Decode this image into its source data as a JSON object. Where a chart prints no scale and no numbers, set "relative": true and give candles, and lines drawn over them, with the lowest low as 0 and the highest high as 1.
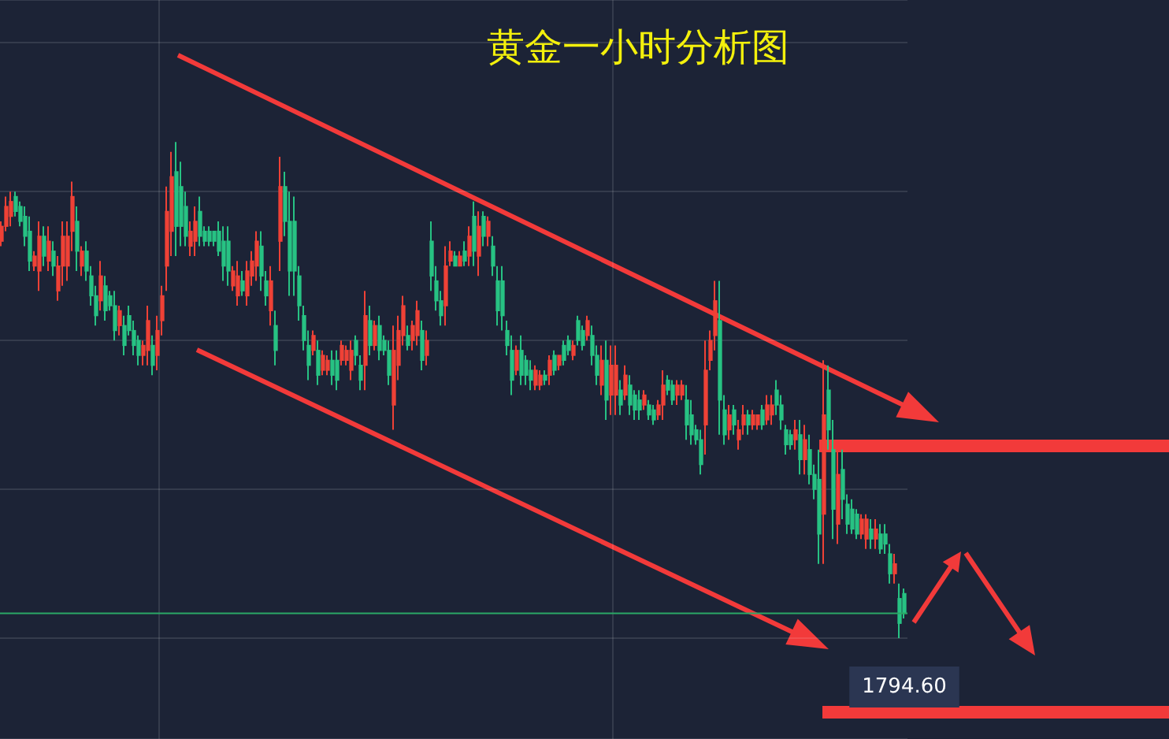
{
  "chart_data": {
    "type": "candlestick",
    "title": "黄金一小时分析图",
    "relative": true,
    "grid": true,
    "tick_labels": false,
    "categories": [
      null,
      null,
      null,
      null,
      null,
      null,
      null,
      null,
      null,
      null,
      null,
      null,
      null,
      null,
      null,
      null,
      null,
      null,
      null,
      null,
      null,
      null,
      null,
      null,
      null,
      null,
      null,
      null,
      null,
      null,
      null,
      null,
      null,
      null,
      null,
      null,
      null,
      null,
      null,
      null,
      null,
      null,
      null,
      null,
      null,
      null,
      null,
      null,
      null,
      null,
      null,
      null,
      null,
      null,
      null,
      null,
      null,
      null,
      null,
      null,
      null,
      null,
      null,
      null,
      null,
      null,
      null,
      null,
      null,
      null,
      null,
      null,
      null,
      null,
      null,
      null,
      null,
      null,
      null,
      null,
      null,
      null,
      null,
      null,
      null,
      null,
      null,
      null,
      null,
      null,
      null,
      null,
      null,
      null,
      null,
      null,
      null,
      null,
      null,
      null,
      null,
      null,
      null,
      null,
      null,
      null,
      null,
      null,
      null,
      null,
      null,
      null,
      null,
      null,
      null,
      null,
      null,
      null,
      null,
      null,
      null,
      null,
      null,
      null,
      null,
      null,
      null,
      null,
      null,
      null,
      null,
      null,
      null,
      null,
      null,
      null,
      null,
      null,
      null,
      null,
      null,
      null,
      null,
      null,
      null,
      null,
      null,
      null,
      null,
      null,
      null,
      null,
      null,
      null,
      null,
      null,
      null,
      null,
      null,
      null,
      null,
      null,
      null,
      null,
      null,
      null,
      null,
      null,
      null,
      null,
      null,
      null,
      null,
      null,
      null,
      null,
      null,
      null,
      null,
      null,
      null,
      null,
      null,
      null,
      null,
      null,
      null,
      null,
      null,
      null,
      null,
      null
    ],
    "ohlc": [
      [
        0.8,
        0.84,
        0.79,
        0.83
      ],
      [
        0.83,
        0.89,
        0.82,
        0.87
      ],
      [
        0.85,
        0.9,
        0.83,
        0.88
      ],
      [
        0.89,
        0.9,
        0.85,
        0.86
      ],
      [
        0.87,
        0.88,
        0.83,
        0.84
      ],
      [
        0.85,
        0.87,
        0.79,
        0.81
      ],
      [
        0.82,
        0.85,
        0.74,
        0.76
      ],
      [
        0.75,
        0.78,
        0.74,
        0.77
      ],
      [
        0.74,
        0.84,
        0.7,
        0.81
      ],
      [
        0.81,
        0.83,
        0.75,
        0.77
      ],
      [
        0.76,
        0.83,
        0.74,
        0.8
      ],
      [
        0.78,
        0.8,
        0.73,
        0.75
      ],
      [
        0.7,
        0.77,
        0.68,
        0.75
      ],
      [
        0.75,
        0.84,
        0.71,
        0.81
      ],
      [
        0.75,
        0.84,
        0.72,
        0.81
      ],
      [
        0.82,
        0.92,
        0.78,
        0.89
      ],
      [
        0.84,
        0.87,
        0.74,
        0.78
      ],
      [
        0.75,
        0.79,
        0.73,
        0.78
      ],
      [
        0.78,
        0.8,
        0.72,
        0.74
      ],
      [
        0.73,
        0.75,
        0.67,
        0.69
      ],
      [
        0.69,
        0.71,
        0.63,
        0.65
      ],
      [
        0.68,
        0.76,
        0.66,
        0.73
      ],
      [
        0.71,
        0.73,
        0.64,
        0.66
      ],
      [
        0.69,
        0.7,
        0.66,
        0.67
      ],
      [
        0.67,
        0.7,
        0.6,
        0.62
      ],
      [
        0.63,
        0.67,
        0.61,
        0.66
      ],
      [
        0.63,
        0.65,
        0.57,
        0.59
      ],
      [
        0.65,
        0.67,
        0.61,
        0.62
      ],
      [
        0.62,
        0.64,
        0.57,
        0.59
      ],
      [
        0.6,
        0.61,
        0.55,
        0.57
      ],
      [
        0.57,
        0.6,
        0.55,
        0.59
      ],
      [
        0.58,
        0.67,
        0.55,
        0.64
      ],
      [
        0.59,
        0.61,
        0.53,
        0.55
      ],
      [
        0.57,
        0.65,
        0.54,
        0.62
      ],
      [
        0.64,
        0.71,
        0.61,
        0.69
      ],
      [
        0.75,
        0.91,
        0.7,
        0.86
      ],
      [
        0.82,
        0.98,
        0.77,
        0.93
      ],
      [
        0.94,
        1.0,
        0.77,
        0.83
      ],
      [
        0.91,
        0.96,
        0.79,
        0.83
      ],
      [
        0.87,
        0.9,
        0.79,
        0.81
      ],
      [
        0.79,
        0.84,
        0.77,
        0.82
      ],
      [
        0.8,
        0.87,
        0.77,
        0.84
      ],
      [
        0.86,
        0.89,
        0.79,
        0.81
      ],
      [
        0.82,
        0.83,
        0.79,
        0.8
      ],
      [
        0.82,
        0.83,
        0.79,
        0.8
      ],
      [
        0.82,
        0.82,
        0.79,
        0.8
      ],
      [
        0.82,
        0.84,
        0.77,
        0.78
      ],
      [
        0.8,
        0.83,
        0.72,
        0.75
      ],
      [
        0.8,
        0.83,
        0.71,
        0.74
      ],
      [
        0.71,
        0.75,
        0.7,
        0.74
      ],
      [
        0.69,
        0.76,
        0.67,
        0.73
      ],
      [
        0.72,
        0.74,
        0.69,
        0.7
      ],
      [
        0.69,
        0.76,
        0.67,
        0.74
      ],
      [
        0.73,
        0.78,
        0.71,
        0.76
      ],
      [
        0.75,
        0.82,
        0.72,
        0.8
      ],
      [
        0.79,
        0.82,
        0.7,
        0.73
      ],
      [
        0.72,
        0.74,
        0.67,
        0.69
      ],
      [
        0.66,
        0.75,
        0.63,
        0.72
      ],
      [
        0.63,
        0.66,
        0.55,
        0.58
      ],
      [
        0.8,
        0.97,
        0.74,
        0.91
      ],
      [
        0.91,
        0.94,
        0.81,
        0.84
      ],
      [
        0.84,
        0.9,
        0.69,
        0.74
      ],
      [
        0.84,
        0.89,
        0.69,
        0.74
      ],
      [
        0.73,
        0.75,
        0.64,
        0.67
      ],
      [
        0.65,
        0.67,
        0.58,
        0.6
      ],
      [
        0.59,
        0.62,
        0.52,
        0.55
      ],
      [
        0.58,
        0.62,
        0.57,
        0.61
      ],
      [
        0.58,
        0.6,
        0.51,
        0.53
      ],
      [
        0.54,
        0.58,
        0.53,
        0.57
      ],
      [
        0.54,
        0.57,
        0.53,
        0.56
      ],
      [
        0.56,
        0.58,
        0.51,
        0.53
      ],
      [
        0.56,
        0.58,
        0.5,
        0.52
      ],
      [
        0.56,
        0.6,
        0.55,
        0.59
      ],
      [
        0.56,
        0.59,
        0.55,
        0.58
      ],
      [
        0.54,
        0.6,
        0.52,
        0.58
      ],
      [
        0.6,
        0.61,
        0.55,
        0.57
      ],
      [
        0.55,
        0.57,
        0.5,
        0.52
      ],
      [
        0.55,
        0.7,
        0.5,
        0.65
      ],
      [
        0.64,
        0.67,
        0.57,
        0.59
      ],
      [
        0.59,
        0.64,
        0.58,
        0.63
      ],
      [
        0.63,
        0.65,
        0.56,
        0.58
      ],
      [
        0.6,
        0.61,
        0.57,
        0.58
      ],
      [
        0.58,
        0.6,
        0.51,
        0.53
      ],
      [
        0.47,
        0.63,
        0.42,
        0.58
      ],
      [
        0.55,
        0.65,
        0.52,
        0.62
      ],
      [
        0.61,
        0.69,
        0.59,
        0.67
      ],
      [
        0.61,
        0.63,
        0.58,
        0.59
      ],
      [
        0.6,
        0.64,
        0.58,
        0.63
      ],
      [
        0.61,
        0.68,
        0.59,
        0.66
      ],
      [
        0.62,
        0.64,
        0.54,
        0.56
      ],
      [
        0.57,
        0.62,
        0.55,
        0.6
      ],
      [
        0.8,
        0.84,
        0.7,
        0.73
      ],
      [
        0.72,
        0.75,
        0.66,
        0.68
      ],
      [
        0.68,
        0.7,
        0.63,
        0.65
      ],
      [
        0.67,
        0.79,
        0.63,
        0.75
      ],
      [
        0.76,
        0.8,
        0.75,
        0.78
      ],
      [
        0.77,
        0.78,
        0.75,
        0.75
      ],
      [
        0.75,
        0.78,
        0.75,
        0.77
      ],
      [
        0.78,
        0.8,
        0.75,
        0.76
      ],
      [
        0.77,
        0.83,
        0.75,
        0.81
      ],
      [
        0.85,
        0.88,
        0.75,
        0.78
      ],
      [
        0.77,
        0.86,
        0.73,
        0.83
      ],
      [
        0.85,
        0.86,
        0.79,
        0.81
      ],
      [
        0.81,
        0.85,
        0.79,
        0.84
      ],
      [
        0.79,
        0.81,
        0.73,
        0.75
      ],
      [
        0.72,
        0.75,
        0.63,
        0.66
      ],
      [
        0.72,
        0.75,
        0.62,
        0.65
      ],
      [
        0.62,
        0.64,
        0.57,
        0.59
      ],
      [
        0.58,
        0.61,
        0.49,
        0.52
      ],
      [
        0.54,
        0.59,
        0.53,
        0.58
      ],
      [
        0.58,
        0.61,
        0.51,
        0.53
      ],
      [
        0.56,
        0.57,
        0.51,
        0.53
      ],
      [
        0.54,
        0.56,
        0.5,
        0.52
      ],
      [
        0.51,
        0.55,
        0.5,
        0.54
      ],
      [
        0.51,
        0.54,
        0.5,
        0.53
      ],
      [
        0.53,
        0.54,
        0.51,
        0.52
      ],
      [
        0.53,
        0.57,
        0.51,
        0.56
      ],
      [
        0.57,
        0.58,
        0.53,
        0.54
      ],
      [
        0.55,
        0.57,
        0.54,
        0.57
      ],
      [
        0.59,
        0.6,
        0.55,
        0.56
      ],
      [
        0.6,
        0.61,
        0.57,
        0.58
      ],
      [
        0.57,
        0.6,
        0.56,
        0.59
      ],
      [
        0.64,
        0.65,
        0.59,
        0.6
      ],
      [
        0.62,
        0.63,
        0.58,
        0.59
      ],
      [
        0.61,
        0.65,
        0.6,
        0.64
      ],
      [
        0.61,
        0.63,
        0.55,
        0.57
      ],
      [
        0.57,
        0.59,
        0.51,
        0.53
      ],
      [
        0.51,
        0.59,
        0.49,
        0.56
      ],
      [
        0.56,
        0.6,
        0.44,
        0.48
      ],
      [
        0.49,
        0.59,
        0.45,
        0.55
      ],
      [
        0.49,
        0.59,
        0.45,
        0.55
      ],
      [
        0.5,
        0.52,
        0.45,
        0.47
      ],
      [
        0.49,
        0.55,
        0.48,
        0.53
      ],
      [
        0.51,
        0.53,
        0.45,
        0.47
      ],
      [
        0.49,
        0.5,
        0.44,
        0.46
      ],
      [
        0.48,
        0.5,
        0.44,
        0.46
      ],
      [
        0.47,
        0.5,
        0.46,
        0.49
      ],
      [
        0.47,
        0.48,
        0.44,
        0.45
      ],
      [
        0.46,
        0.47,
        0.43,
        0.44
      ],
      [
        0.45,
        0.48,
        0.44,
        0.47
      ],
      [
        0.47,
        0.54,
        0.44,
        0.51
      ],
      [
        0.52,
        0.53,
        0.49,
        0.5
      ],
      [
        0.51,
        0.52,
        0.47,
        0.48
      ],
      [
        0.49,
        0.52,
        0.47,
        0.51
      ],
      [
        0.49,
        0.52,
        0.48,
        0.51
      ],
      [
        0.48,
        0.51,
        0.4,
        0.43
      ],
      [
        0.45,
        0.48,
        0.39,
        0.41
      ],
      [
        0.42,
        0.43,
        0.39,
        0.4
      ],
      [
        0.4,
        0.42,
        0.33,
        0.35
      ],
      [
        0.43,
        0.6,
        0.37,
        0.54
      ],
      [
        0.56,
        0.62,
        0.54,
        0.6
      ],
      [
        0.61,
        0.72,
        0.58,
        0.68
      ],
      [
        0.64,
        0.72,
        0.41,
        0.48
      ],
      [
        0.46,
        0.49,
        0.39,
        0.41
      ],
      [
        0.42,
        0.47,
        0.4,
        0.45
      ],
      [
        0.46,
        0.47,
        0.41,
        0.43
      ],
      [
        0.4,
        0.44,
        0.38,
        0.42
      ],
      [
        0.43,
        0.47,
        0.41,
        0.45
      ],
      [
        0.45,
        0.46,
        0.41,
        0.43
      ],
      [
        0.43,
        0.46,
        0.42,
        0.45
      ],
      [
        0.43,
        0.45,
        0.42,
        0.45
      ],
      [
        0.46,
        0.47,
        0.42,
        0.43
      ],
      [
        0.44,
        0.49,
        0.43,
        0.47
      ],
      [
        0.45,
        0.49,
        0.43,
        0.47
      ],
      [
        0.5,
        0.52,
        0.45,
        0.47
      ],
      [
        0.47,
        0.49,
        0.42,
        0.44
      ],
      [
        0.42,
        0.43,
        0.37,
        0.39
      ],
      [
        0.41,
        0.42,
        0.38,
        0.39
      ],
      [
        0.4,
        0.44,
        0.38,
        0.42
      ],
      [
        0.41,
        0.44,
        0.33,
        0.36
      ],
      [
        0.36,
        0.43,
        0.33,
        0.4
      ],
      [
        0.38,
        0.41,
        0.31,
        0.33
      ],
      [
        0.33,
        0.35,
        0.28,
        0.3
      ],
      [
        0.32,
        0.38,
        0.15,
        0.21
      ],
      [
        0.25,
        0.56,
        0.15,
        0.45
      ],
      [
        0.5,
        0.55,
        0.38,
        0.42
      ],
      [
        0.38,
        0.44,
        0.2,
        0.26
      ],
      [
        0.23,
        0.38,
        0.19,
        0.33
      ],
      [
        0.34,
        0.38,
        0.24,
        0.28
      ],
      [
        0.27,
        0.29,
        0.21,
        0.23
      ],
      [
        0.26,
        0.28,
        0.21,
        0.22
      ],
      [
        0.25,
        0.26,
        0.2,
        0.21
      ],
      [
        0.21,
        0.25,
        0.2,
        0.24
      ],
      [
        0.2,
        0.25,
        0.18,
        0.24
      ],
      [
        0.22,
        0.24,
        0.18,
        0.2
      ],
      [
        0.2,
        0.24,
        0.18,
        0.22
      ],
      [
        0.21,
        0.23,
        0.17,
        0.18
      ],
      [
        0.21,
        0.23,
        0.17,
        0.19
      ],
      [
        0.17,
        0.19,
        0.11,
        0.13
      ],
      [
        0.13,
        0.17,
        0.11,
        0.15
      ],
      [
        0.08,
        0.11,
        0.0,
        0.03
      ],
      [
        0.09,
        0.1,
        0.04,
        0.05
      ]
    ],
    "ref_lines": [
      {
        "axis": "y",
        "value": 0.05,
        "color": "#2aa866"
      }
    ],
    "annotations": [
      "1794.60"
    ]
  }
}
